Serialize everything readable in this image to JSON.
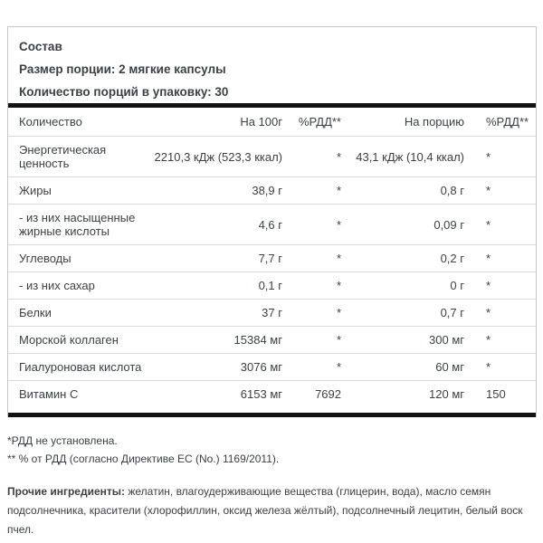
{
  "info": {
    "title": "Состав",
    "serving_size_label": "Размер порции:",
    "serving_size_value": "2 мягкие капсулы",
    "servings_label": "Количество порций в упаковку:",
    "servings_value": "30"
  },
  "table": {
    "headers": [
      "Количество",
      "На 100г",
      "%РДД**",
      "На порцию",
      "%РДД**"
    ],
    "rows": [
      {
        "name": "Энергетическая ценность",
        "per100": "2210,3 кДж (523,3 ккал)",
        "rdd100": "*",
        "serving": "43,1 кДж (10,4 ккал)",
        "rdd_serving": "*"
      },
      {
        "name": "Жиры",
        "per100": "38,9 г",
        "rdd100": "*",
        "serving": "0,8 г",
        "rdd_serving": "*"
      },
      {
        "name": "- из них насыщенные жирные кислоты",
        "per100": "4,6 г",
        "rdd100": "*",
        "serving": "0,09 г",
        "rdd_serving": "*"
      },
      {
        "name": "Углеводы",
        "per100": "7,7 г",
        "rdd100": "*",
        "serving": "0,2 г",
        "rdd_serving": "*"
      },
      {
        "name": "- из них сахар",
        "per100": "0,1 г",
        "rdd100": "*",
        "serving": "0 г",
        "rdd_serving": "*"
      },
      {
        "name": "Белки",
        "per100": "37 г",
        "rdd100": "*",
        "serving": "0,7 г",
        "rdd_serving": "*"
      },
      {
        "name": "Морской коллаген",
        "per100": "15384 мг",
        "rdd100": "*",
        "serving": "300 мг",
        "rdd_serving": "*"
      },
      {
        "name": "Гиалуроновая кислота",
        "per100": "3076 мг",
        "rdd100": "*",
        "serving": "60 мг",
        "rdd_serving": "*"
      },
      {
        "name": "Витамин C",
        "per100": "6153 мг",
        "rdd100": "7692",
        "serving": "120 мг",
        "rdd_serving": "150"
      }
    ]
  },
  "footnotes": [
    "*РДД не установлена.",
    "** % от РДД (согласно Директиве ЕС (No.) 1169/2011)."
  ],
  "ingredients": {
    "label": "Прочие ингредиенты:",
    "text": "желатин, влагоудерживающие вещества (глицерин, вода), масло семян подсолнечника, красители (хлорофиллин, оксид железа жёлтый), подсолнечный лецитин, белый воск пчел."
  }
}
